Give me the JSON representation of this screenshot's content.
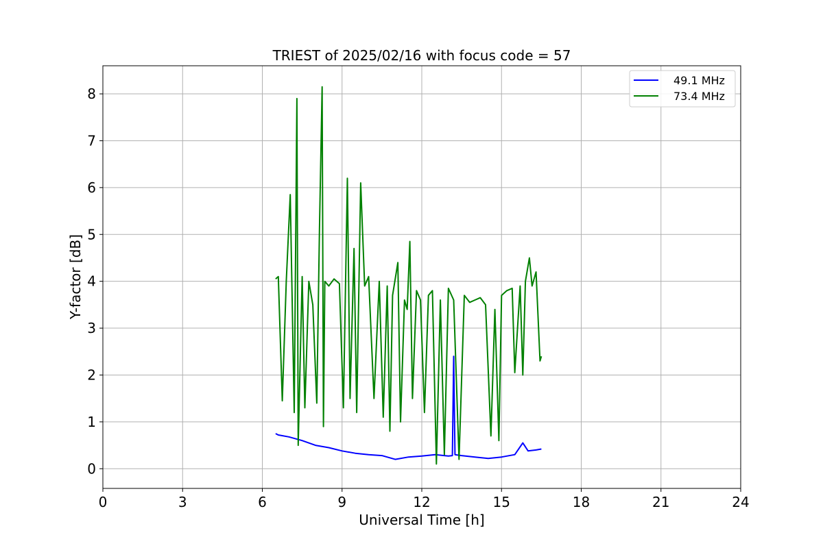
{
  "chart_data": {
    "type": "line",
    "title": "TRIEST of 2025/02/16 with focus code = 57",
    "xlabel": "Universal Time [h]",
    "ylabel": "Y-factor [dB]",
    "xlim": [
      0,
      24
    ],
    "ylim": [
      -0.42,
      8.6
    ],
    "xticks": [
      0,
      3,
      6,
      9,
      12,
      15,
      18,
      21,
      24
    ],
    "yticks": [
      0,
      1,
      2,
      3,
      4,
      5,
      6,
      7,
      8
    ],
    "grid": true,
    "legend_position": "top-right",
    "series": [
      {
        "name": "49.1 MHz",
        "color": "#0000ff",
        "x": [
          6.5,
          6.6,
          7.0,
          7.5,
          8.0,
          8.5,
          9.0,
          9.5,
          10.0,
          10.5,
          11.0,
          11.5,
          12.0,
          12.5,
          13.0,
          13.15,
          13.2,
          13.25,
          13.5,
          14.0,
          14.5,
          15.0,
          15.5,
          15.8,
          16.0,
          16.3,
          16.5
        ],
        "y": [
          0.75,
          0.72,
          0.68,
          0.6,
          0.5,
          0.45,
          0.38,
          0.33,
          0.3,
          0.28,
          0.2,
          0.25,
          0.27,
          0.3,
          0.27,
          0.28,
          2.4,
          0.3,
          0.28,
          0.25,
          0.22,
          0.25,
          0.3,
          0.55,
          0.38,
          0.4,
          0.42
        ]
      },
      {
        "name": "73.4 MHz",
        "color": "#008000",
        "x": [
          6.5,
          6.6,
          6.75,
          6.9,
          7.05,
          7.2,
          7.3,
          7.35,
          7.5,
          7.6,
          7.75,
          7.9,
          8.05,
          8.15,
          8.25,
          8.3,
          8.35,
          8.5,
          8.7,
          8.9,
          9.05,
          9.2,
          9.3,
          9.45,
          9.55,
          9.7,
          9.85,
          10.0,
          10.2,
          10.4,
          10.55,
          10.7,
          10.8,
          10.9,
          11.1,
          11.2,
          11.35,
          11.45,
          11.55,
          11.65,
          11.8,
          11.95,
          12.1,
          12.25,
          12.4,
          12.55,
          12.7,
          12.85,
          13.0,
          13.2,
          13.4,
          13.6,
          13.8,
          14.0,
          14.2,
          14.4,
          14.6,
          14.75,
          14.9,
          15.0,
          15.2,
          15.4,
          15.5,
          15.7,
          15.8,
          15.9,
          16.05,
          16.15,
          16.3,
          16.45,
          16.5
        ],
        "y": [
          4.05,
          4.1,
          1.45,
          4.0,
          5.85,
          1.2,
          7.9,
          0.5,
          4.1,
          1.3,
          4.0,
          3.5,
          1.4,
          5.1,
          8.15,
          0.9,
          4.0,
          3.9,
          4.05,
          3.95,
          1.3,
          6.2,
          1.5,
          4.7,
          1.2,
          6.1,
          3.9,
          4.1,
          1.5,
          4.0,
          1.1,
          3.9,
          0.8,
          3.7,
          4.4,
          1.0,
          3.6,
          3.4,
          4.85,
          1.5,
          3.8,
          3.6,
          1.2,
          3.7,
          3.8,
          0.1,
          3.6,
          0.3,
          3.85,
          3.6,
          0.2,
          3.7,
          3.55,
          3.6,
          3.65,
          3.5,
          0.7,
          3.4,
          0.6,
          3.7,
          3.8,
          3.85,
          2.05,
          3.9,
          2.0,
          4.0,
          4.5,
          3.9,
          4.2,
          2.3,
          2.4
        ]
      }
    ]
  }
}
